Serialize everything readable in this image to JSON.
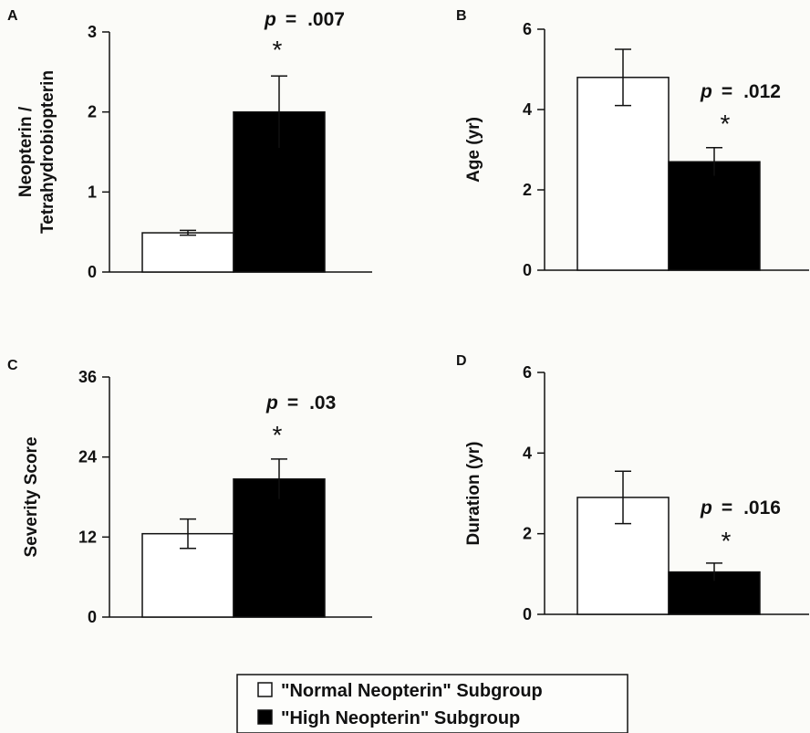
{
  "chart_data": [
    {
      "panel": "A",
      "type": "bar",
      "ylabel": [
        "Neopterin /",
        "Tetrahydrobiopterin"
      ],
      "ylim": [
        0,
        3
      ],
      "yticks": [
        0,
        1,
        2,
        3
      ],
      "categories": [
        "\"Normal Neopterin\" Subgroup",
        "\"High Neopterin\" Subgroup"
      ],
      "values": [
        0.49,
        2.0
      ],
      "errors": [
        0.03,
        0.45
      ],
      "p_value": ".007",
      "star": "*"
    },
    {
      "panel": "B",
      "type": "bar",
      "ylabel": [
        "Age (yr)"
      ],
      "ylim": [
        0,
        6
      ],
      "yticks": [
        0,
        2,
        4,
        6
      ],
      "categories": [
        "\"Normal Neopterin\" Subgroup",
        "\"High Neopterin\" Subgroup"
      ],
      "values": [
        4.8,
        2.7
      ],
      "errors": [
        0.7,
        0.35
      ],
      "p_value": ".012",
      "star": "*"
    },
    {
      "panel": "C",
      "type": "bar",
      "ylabel": [
        "Severity Score"
      ],
      "ylim": [
        0,
        36
      ],
      "yticks": [
        0,
        12,
        24,
        36
      ],
      "categories": [
        "\"Normal Neopterin\" Subgroup",
        "\"High Neopterin\" Subgroup"
      ],
      "values": [
        12.5,
        20.7
      ],
      "errors": [
        2.2,
        3.0
      ],
      "p_value": ".03",
      "star": "*"
    },
    {
      "panel": "D",
      "type": "bar",
      "ylabel": [
        "Duration (yr)"
      ],
      "ylim": [
        0,
        6
      ],
      "yticks": [
        0,
        2,
        4,
        6
      ],
      "categories": [
        "\"Normal Neopterin\" Subgroup",
        "\"High Neopterin\" Subgroup"
      ],
      "values": [
        2.9,
        1.05
      ],
      "errors": [
        0.65,
        0.22
      ],
      "p_value": ".016",
      "star": "*"
    }
  ],
  "p_prefix": "p",
  "p_equals": "=",
  "legend": {
    "items": [
      {
        "label": "\"Normal Neopterin\" Subgroup",
        "color": "#ffffff"
      },
      {
        "label": "\"High Neopterin\" Subgroup",
        "color": "#000000"
      }
    ]
  },
  "colors": {
    "normal_bar": "#ffffff",
    "high_bar": "#000000",
    "axis": "#111111"
  }
}
